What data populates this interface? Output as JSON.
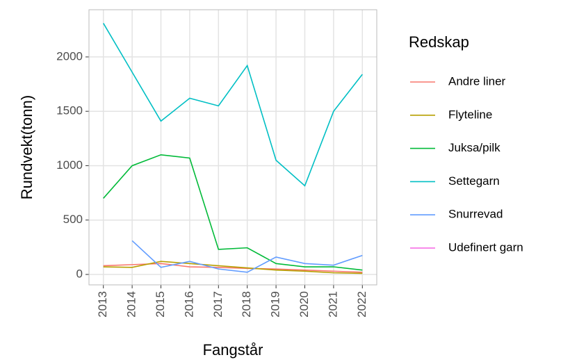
{
  "chart_data": {
    "type": "line",
    "xlabel": "Fangstår",
    "ylabel": "Rundvekt(tonn)",
    "legend_title": "Redskap",
    "x": [
      2013,
      2014,
      2015,
      2016,
      2017,
      2018,
      2019,
      2020,
      2021,
      2022
    ],
    "series": [
      {
        "name": "Andre liner",
        "color": "#F8766D",
        "values": [
          80,
          90,
          100,
          70,
          65,
          55,
          50,
          40,
          30,
          20
        ]
      },
      {
        "name": "Flyteline",
        "color": "#B79F00",
        "values": [
          70,
          65,
          120,
          100,
          80,
          60,
          40,
          30,
          15,
          10
        ]
      },
      {
        "name": "Juksa/pilk",
        "color": "#00BA38",
        "values": [
          700,
          1000,
          1100,
          1070,
          230,
          245,
          100,
          70,
          70,
          40
        ]
      },
      {
        "name": "Settegarn",
        "color": "#00BFC4",
        "values": [
          2310,
          1860,
          1410,
          1620,
          1550,
          1920,
          1050,
          815,
          1500,
          1840
        ]
      },
      {
        "name": "Snurrevad",
        "color": "#619CFF",
        "values": [
          null,
          310,
          65,
          120,
          50,
          20,
          160,
          100,
          85,
          175
        ]
      },
      {
        "name": "Udefinert garn",
        "color": "#F564E3",
        "values": [
          null,
          null,
          null,
          null,
          null,
          null,
          null,
          null,
          null,
          null
        ]
      }
    ],
    "xlim": [
      2012.5,
      2022.5
    ],
    "xticks": [
      2013,
      2014,
      2015,
      2016,
      2017,
      2018,
      2019,
      2020,
      2021,
      2022
    ],
    "ylim": [
      -96,
      2434
    ],
    "yticks": [
      0,
      500,
      1000,
      1500,
      2000
    ],
    "grid": true,
    "legend": "right"
  }
}
